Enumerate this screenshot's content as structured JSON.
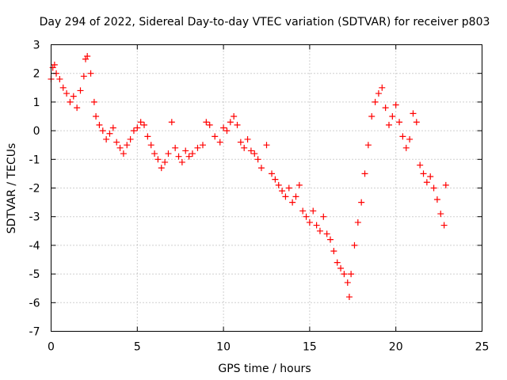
{
  "chart_data": {
    "type": "scatter",
    "title": "Day 294 of 2022, Sidereal Day-to-day VTEC variation (SDTVAR) for receiver p803",
    "xlabel": "GPS time / hours",
    "ylabel": "SDTVAR / TECUs",
    "xlim": [
      0,
      25
    ],
    "ylim": [
      -7,
      3
    ],
    "xticks": [
      0,
      5,
      10,
      15,
      20,
      25
    ],
    "yticks": [
      -7,
      -6,
      -5,
      -4,
      -3,
      -2,
      -1,
      0,
      1,
      2,
      3
    ],
    "grid": true,
    "marker": "+",
    "color": "#ff0000",
    "series": [
      {
        "name": "SDTVAR",
        "x": [
          0.0,
          0.1,
          0.2,
          0.3,
          0.5,
          0.7,
          0.9,
          1.1,
          1.3,
          1.5,
          1.7,
          1.9,
          2.0,
          2.1,
          2.3,
          2.5,
          2.6,
          2.8,
          3.0,
          3.2,
          3.4,
          3.6,
          3.8,
          4.0,
          4.2,
          4.4,
          4.6,
          4.8,
          5.0,
          5.2,
          5.4,
          5.6,
          5.8,
          6.0,
          6.2,
          6.4,
          6.6,
          6.8,
          7.0,
          7.2,
          7.4,
          7.6,
          7.8,
          8.0,
          8.2,
          8.5,
          8.8,
          9.0,
          9.2,
          9.5,
          9.8,
          10.0,
          10.2,
          10.4,
          10.6,
          10.8,
          11.0,
          11.2,
          11.4,
          11.6,
          11.8,
          12.0,
          12.2,
          12.5,
          12.8,
          13.0,
          13.2,
          13.4,
          13.6,
          13.8,
          14.0,
          14.2,
          14.4,
          14.6,
          14.8,
          15.0,
          15.2,
          15.4,
          15.6,
          15.8,
          16.0,
          16.2,
          16.4,
          16.6,
          16.8,
          17.0,
          17.2,
          17.3,
          17.4,
          17.6,
          17.8,
          18.0,
          18.2,
          18.4,
          18.6,
          18.8,
          19.0,
          19.2,
          19.4,
          19.6,
          19.8,
          20.0,
          20.2,
          20.4,
          20.6,
          20.8,
          21.0,
          21.2,
          21.4,
          21.6,
          21.8,
          22.0,
          22.2,
          22.4,
          22.6,
          22.8,
          22.9
        ],
        "y": [
          1.8,
          2.2,
          2.3,
          2.0,
          1.8,
          1.5,
          1.3,
          1.0,
          1.2,
          0.8,
          1.4,
          1.9,
          2.5,
          2.6,
          2.0,
          1.0,
          0.5,
          0.2,
          0.0,
          -0.3,
          -0.1,
          0.1,
          -0.4,
          -0.6,
          -0.8,
          -0.5,
          -0.3,
          0.0,
          0.1,
          0.3,
          0.2,
          -0.2,
          -0.5,
          -0.8,
          -1.0,
          -1.3,
          -1.1,
          -0.8,
          0.3,
          -0.6,
          -0.9,
          -1.1,
          -0.7,
          -0.9,
          -0.8,
          -0.6,
          -0.5,
          0.3,
          0.2,
          -0.2,
          -0.4,
          0.1,
          0.0,
          0.3,
          0.5,
          0.2,
          -0.4,
          -0.6,
          -0.3,
          -0.7,
          -0.8,
          -1.0,
          -1.3,
          -0.5,
          -1.5,
          -1.7,
          -1.9,
          -2.1,
          -2.3,
          -2.0,
          -2.5,
          -2.3,
          -1.9,
          -2.8,
          -3.0,
          -3.2,
          -2.8,
          -3.3,
          -3.5,
          -3.0,
          -3.6,
          -3.8,
          -4.2,
          -4.6,
          -4.8,
          -5.0,
          -5.3,
          -5.8,
          -5.0,
          -4.0,
          -3.2,
          -2.5,
          -1.5,
          -0.5,
          0.5,
          1.0,
          1.3,
          1.5,
          0.8,
          0.2,
          0.5,
          0.9,
          0.3,
          -0.2,
          -0.6,
          -0.3,
          0.6,
          0.3,
          -1.2,
          -1.5,
          -1.8,
          -1.6,
          -2.0,
          -2.4,
          -2.9,
          -3.3,
          -1.9
        ]
      }
    ]
  }
}
